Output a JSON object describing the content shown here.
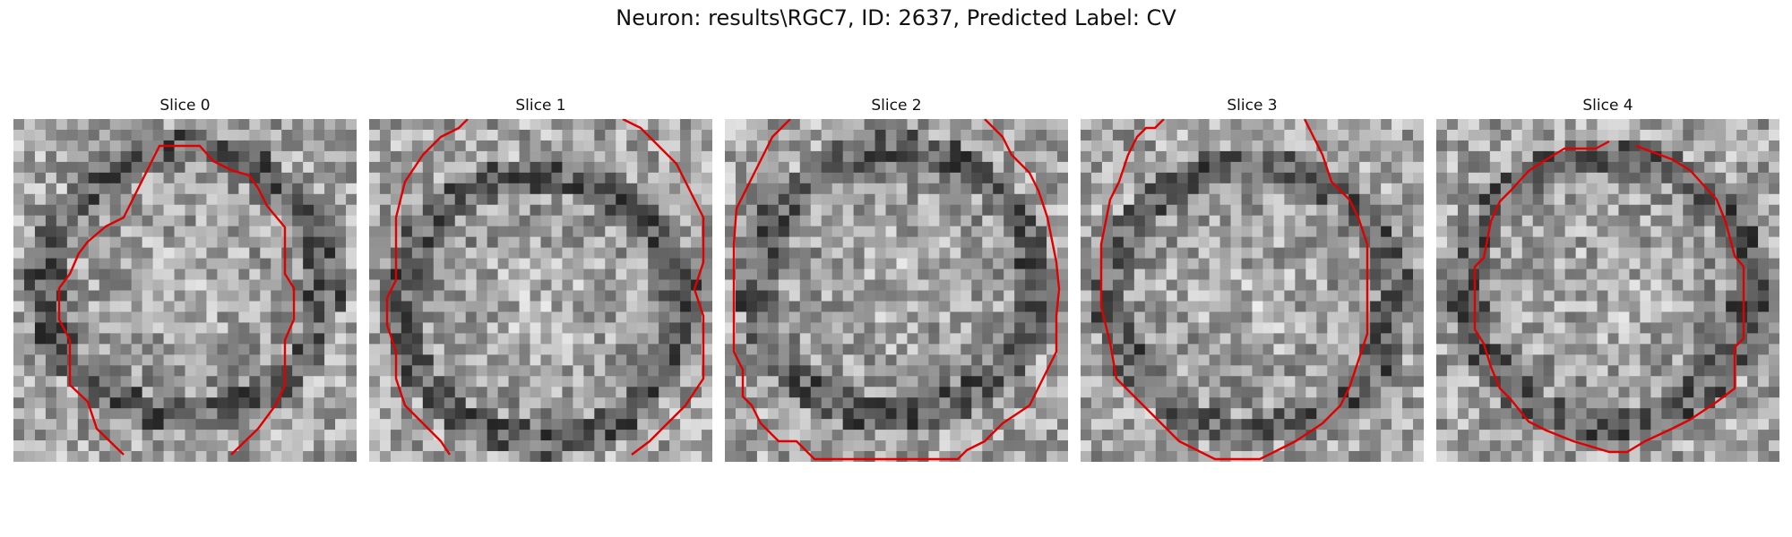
{
  "figure": {
    "title": "Neuron: results\\RGC7, ID: 2637, Predicted Label: CV"
  },
  "contour_color": "#e00000",
  "slices": [
    {
      "label": "Slice 0"
    },
    {
      "label": "Slice 1"
    },
    {
      "label": "Slice 2"
    },
    {
      "label": "Slice 3"
    },
    {
      "label": "Slice 4"
    }
  ]
}
